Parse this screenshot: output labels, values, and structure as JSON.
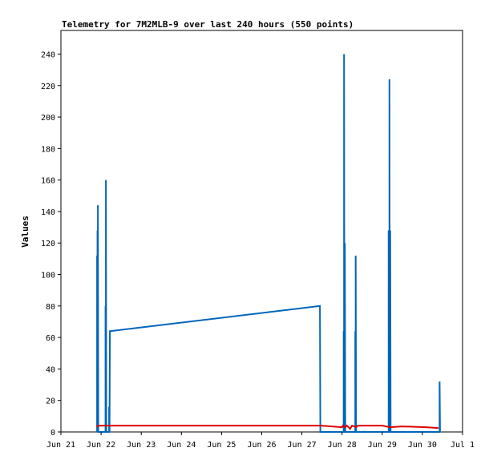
{
  "chart_data": {
    "type": "line",
    "title": "Telemetry for 7M2MLB-9 over last 240 hours (550 points)",
    "xlabel": "",
    "ylabel": "Values",
    "xlim": [
      0,
      10
    ],
    "ylim": [
      0,
      255
    ],
    "x_ticks": [
      {
        "value": 0,
        "label": "Jun 21"
      },
      {
        "value": 1,
        "label": "Jun 22"
      },
      {
        "value": 2,
        "label": "Jun 23"
      },
      {
        "value": 3,
        "label": "Jun 24"
      },
      {
        "value": 4,
        "label": "Jun 25"
      },
      {
        "value": 5,
        "label": "Jun 26"
      },
      {
        "value": 6,
        "label": "Jun 27"
      },
      {
        "value": 7,
        "label": "Jun 28"
      },
      {
        "value": 8,
        "label": "Jun 29"
      },
      {
        "value": 9,
        "label": "Jun 30"
      },
      {
        "value": 10,
        "label": "Jul 1"
      }
    ],
    "y_ticks": [
      0,
      20,
      40,
      60,
      80,
      100,
      120,
      140,
      160,
      180,
      200,
      220,
      240
    ],
    "grid": false,
    "legend": "none",
    "series": [
      {
        "color": "#0066bb",
        "points": [
          [
            0.9,
            0
          ],
          [
            0.9,
            112
          ],
          [
            0.91,
            0
          ],
          [
            0.91,
            128
          ],
          [
            0.92,
            0
          ],
          [
            0.92,
            144
          ],
          [
            0.93,
            0
          ],
          [
            1.11,
            0
          ],
          [
            1.11,
            80
          ],
          [
            1.12,
            0
          ],
          [
            1.12,
            160
          ],
          [
            1.13,
            0
          ],
          [
            1.2,
            0
          ],
          [
            1.2,
            16
          ],
          [
            1.21,
            0
          ],
          [
            1.22,
            64
          ],
          [
            6.45,
            80
          ],
          [
            6.46,
            0
          ],
          [
            7.04,
            0
          ],
          [
            7.04,
            64
          ],
          [
            7.05,
            0
          ],
          [
            7.05,
            240
          ],
          [
            7.06,
            0
          ],
          [
            7.07,
            120
          ],
          [
            7.08,
            0
          ],
          [
            7.33,
            0
          ],
          [
            7.33,
            64
          ],
          [
            7.34,
            0
          ],
          [
            7.34,
            112
          ],
          [
            7.35,
            0
          ],
          [
            8.16,
            0
          ],
          [
            8.16,
            128
          ],
          [
            8.17,
            0
          ],
          [
            8.17,
            112
          ],
          [
            8.18,
            0
          ],
          [
            8.18,
            224
          ],
          [
            8.19,
            0
          ],
          [
            8.2,
            128
          ],
          [
            8.21,
            0
          ],
          [
            9.43,
            0
          ],
          [
            9.43,
            32
          ],
          [
            9.44,
            0
          ]
        ]
      },
      {
        "color": "#dd0000",
        "points": [
          [
            0.9,
            3
          ],
          [
            0.92,
            4
          ],
          [
            6.48,
            4
          ],
          [
            7.0,
            3
          ],
          [
            7.02,
            4
          ],
          [
            7.08,
            3
          ],
          [
            7.12,
            4
          ],
          [
            7.2,
            2
          ],
          [
            7.25,
            4
          ],
          [
            7.35,
            3
          ],
          [
            7.4,
            4
          ],
          [
            8.0,
            4
          ],
          [
            8.2,
            3
          ],
          [
            8.5,
            3.5
          ],
          [
            9.1,
            3
          ],
          [
            9.4,
            2.5
          ]
        ]
      }
    ]
  }
}
